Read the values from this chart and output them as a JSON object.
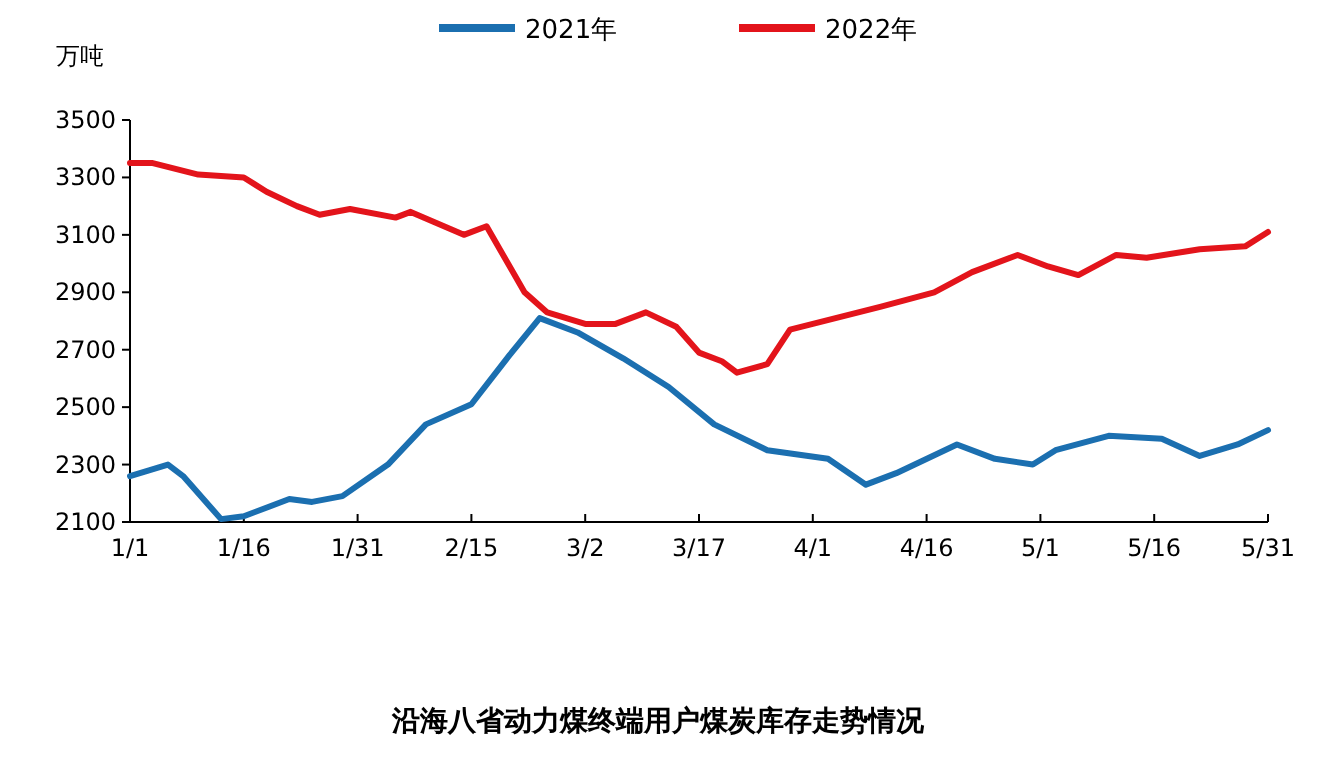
{
  "chart_data": {
    "type": "line",
    "title": "沿海八省动力煤终端用户煤炭库存走势情况",
    "ylabel": "万吨",
    "xlim": [
      "--01-01",
      "--05-31"
    ],
    "xticks": [
      {
        "value": "--01-01",
        "label": "1/1"
      },
      {
        "value": "--01-16",
        "label": "1/16"
      },
      {
        "value": "--01-31",
        "label": "1/31"
      },
      {
        "value": "--02-15",
        "label": "2/15"
      },
      {
        "value": "--03-02",
        "label": "3/2"
      },
      {
        "value": "--03-17",
        "label": "3/17"
      },
      {
        "value": "--04-01",
        "label": "4/1"
      },
      {
        "value": "--04-16",
        "label": "4/16"
      },
      {
        "value": "--05-01",
        "label": "5/1"
      },
      {
        "value": "--05-16",
        "label": "5/16"
      },
      {
        "value": "--05-31",
        "label": "5/31"
      }
    ],
    "ylim": [
      2100,
      3500
    ],
    "yticks": [
      2100,
      2300,
      2500,
      2700,
      2900,
      3100,
      3300,
      3500
    ],
    "grid": false,
    "legend": "top",
    "marker": "none",
    "line_style": "solid",
    "series": [
      {
        "name": "2021年",
        "color": "#1b6fb0",
        "x": [
          "--01-01",
          "--01-06",
          "--01-08",
          "--01-13",
          "--01-16",
          "--01-22",
          "--01-25",
          "--01-29",
          "--02-04",
          "--02-09",
          "--02-15",
          "--02-20",
          "--02-24",
          "--03-01",
          "--03-07",
          "--03-13",
          "--03-19",
          "--03-26",
          "--04-03",
          "--04-08",
          "--04-12",
          "--04-20",
          "--04-25",
          "--04-30",
          "--05-03",
          "--05-10",
          "--05-17",
          "--05-22",
          "--05-27",
          "--05-31"
        ],
        "values": [
          2260,
          2300,
          2260,
          2110,
          2120,
          2180,
          2170,
          2190,
          2300,
          2440,
          2510,
          2680,
          2810,
          2760,
          2670,
          2570,
          2440,
          2350,
          2320,
          2230,
          2270,
          2370,
          2320,
          2300,
          2350,
          2400,
          2390,
          2330,
          2370,
          2420
        ]
      },
      {
        "name": "2022年",
        "color": "#e3141b",
        "x": [
          "--01-01",
          "--01-04",
          "--01-10",
          "--01-16",
          "--01-19",
          "--01-23",
          "--01-26",
          "--01-30",
          "--02-05",
          "--02-07",
          "--02-14",
          "--02-17",
          "--02-22",
          "--02-25",
          "--03-02",
          "--03-06",
          "--03-10",
          "--03-14",
          "--03-17",
          "--03-20",
          "--03-22",
          "--03-26",
          "--03-29",
          "--04-04",
          "--04-10",
          "--04-17",
          "--04-22",
          "--04-28",
          "--05-02",
          "--05-06",
          "--05-11",
          "--05-15",
          "--05-22",
          "--05-28",
          "--05-31"
        ],
        "values": [
          3350,
          3350,
          3310,
          3300,
          3250,
          3200,
          3170,
          3190,
          3160,
          3180,
          3100,
          3130,
          2900,
          2830,
          2790,
          2790,
          2830,
          2780,
          2690,
          2660,
          2620,
          2650,
          2770,
          2810,
          2850,
          2900,
          2970,
          3030,
          2990,
          2960,
          3030,
          3020,
          3050,
          3060,
          3110
        ]
      }
    ]
  }
}
